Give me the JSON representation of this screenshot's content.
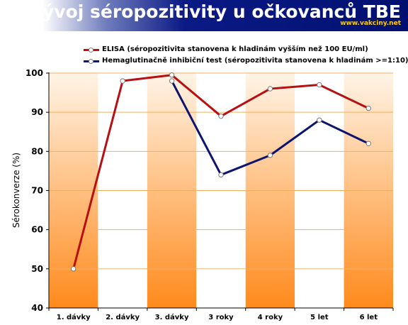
{
  "header": {
    "title": "Vývoj séropozitivity u očkovanců TBE",
    "site": "www.vakciny.net"
  },
  "colors": {
    "elisa": "#b80f12",
    "hemag": "#0c1470",
    "band_top": "#fff4e6",
    "band_bottom": "#ff8a1c",
    "grid": "#f0b060"
  },
  "chart_data": {
    "type": "line",
    "title": "Vývoj séropozitivity u očkovanců TBE",
    "xlabel": "",
    "ylabel": "Sérokonverze (%)",
    "ylim": [
      40,
      100
    ],
    "yticks": [
      40,
      50,
      60,
      70,
      80,
      90,
      100
    ],
    "grid": true,
    "legend_position": "top",
    "categories": [
      "1. dávky",
      "2. dávky",
      "3. dávky",
      "3 roky",
      "4 roky",
      "5 let",
      "6 let"
    ],
    "series": [
      {
        "name": "ELISA (séropozitivita stanovena k hladinám vyšším než 100 EU/ml)",
        "values": [
          50,
          98,
          99.5,
          89,
          96,
          97,
          91
        ]
      },
      {
        "name": "Hemaglutinačně inhibiční test (séropozitivita stanovena k hladinám >=1:10)",
        "values": [
          null,
          null,
          98,
          74,
          79,
          88,
          82
        ]
      }
    ]
  }
}
